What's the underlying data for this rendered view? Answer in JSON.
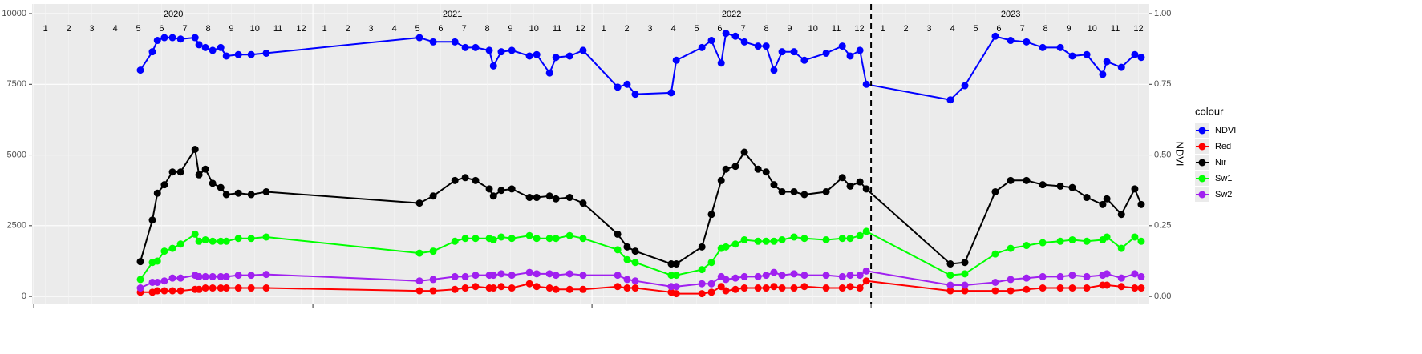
{
  "chart_data": {
    "type": "line",
    "legend_title": "colour",
    "y2label": "NDVI",
    "x": [
      2020.382,
      2020.425,
      2020.443,
      2020.468,
      2020.497,
      2020.526,
      2020.578,
      2020.592,
      2020.615,
      2020.641,
      2020.67,
      2020.69,
      2020.733,
      2020.779,
      2020.833,
      2021.382,
      2021.431,
      2021.509,
      2021.546,
      2021.583,
      2021.632,
      2021.647,
      2021.675,
      2021.713,
      2021.776,
      2021.802,
      2021.848,
      2021.871,
      2021.92,
      2021.968,
      2022.092,
      2022.126,
      2022.155,
      2022.284,
      2022.302,
      2022.394,
      2022.428,
      2022.463,
      2022.48,
      2022.514,
      2022.546,
      2022.595,
      2022.624,
      2022.652,
      2022.681,
      2022.724,
      2022.761,
      2022.839,
      2022.897,
      2022.925,
      2022.96,
      2022.983,
      2023.284,
      2023.336,
      2023.445,
      2023.5,
      2023.557,
      2023.615,
      2023.678,
      2023.721,
      2023.773,
      2023.83,
      2023.845,
      2023.897,
      2023.945,
      2023.968
    ],
    "series": [
      {
        "name": "NDVI",
        "color": "#0000ff",
        "axis": "y2",
        "values": [
          0.8,
          0.865,
          0.905,
          0.915,
          0.915,
          0.91,
          0.915,
          0.89,
          0.88,
          0.87,
          0.88,
          0.85,
          0.855,
          0.855,
          0.86,
          0.915,
          0.9,
          0.9,
          0.88,
          0.88,
          0.87,
          0.815,
          0.865,
          0.87,
          0.85,
          0.855,
          0.79,
          0.845,
          0.85,
          0.87,
          0.74,
          0.75,
          0.715,
          0.72,
          0.835,
          0.88,
          0.905,
          0.825,
          0.93,
          0.92,
          0.9,
          0.885,
          0.885,
          0.8,
          0.865,
          0.865,
          0.835,
          0.86,
          0.885,
          0.85,
          0.87,
          0.75,
          0.695,
          0.745,
          0.92,
          0.905,
          0.9,
          0.88,
          0.88,
          0.85,
          0.855,
          0.785,
          0.83,
          0.81,
          0.855,
          0.845
        ]
      },
      {
        "name": "Red",
        "color": "#ff0000",
        "values": [
          150,
          150,
          200,
          200,
          200,
          200,
          250,
          250,
          300,
          300,
          300,
          300,
          300,
          300,
          300,
          200,
          200,
          250,
          300,
          350,
          300,
          300,
          350,
          300,
          450,
          350,
          300,
          250,
          250,
          250,
          350,
          300,
          300,
          150,
          100,
          100,
          150,
          350,
          200,
          250,
          300,
          300,
          300,
          350,
          300,
          300,
          350,
          300,
          300,
          350,
          300,
          550,
          200,
          200,
          200,
          200,
          250,
          300,
          300,
          300,
          300,
          400,
          400,
          350,
          300,
          300
        ]
      },
      {
        "name": "Nir",
        "color": "#000000",
        "values": [
          1230,
          2700,
          3650,
          3950,
          4400,
          4400,
          5200,
          4300,
          4500,
          4000,
          3850,
          3600,
          3650,
          3600,
          3700,
          3300,
          3550,
          4100,
          4200,
          4100,
          3800,
          3550,
          3750,
          3800,
          3500,
          3500,
          3550,
          3450,
          3500,
          3300,
          2200,
          1750,
          1600,
          1150,
          1150,
          1750,
          2900,
          4100,
          4500,
          4600,
          5100,
          4500,
          4400,
          3950,
          3700,
          3700,
          3600,
          3700,
          4200,
          3900,
          4050,
          3800,
          1150,
          1200,
          3700,
          4100,
          4100,
          3950,
          3900,
          3850,
          3500,
          3250,
          3450,
          2900,
          3800,
          3250
        ]
      },
      {
        "name": "Sw1",
        "color": "#00ff00",
        "values": [
          600,
          1200,
          1250,
          1600,
          1700,
          1850,
          2200,
          1950,
          2000,
          1950,
          1950,
          1950,
          2050,
          2050,
          2100,
          1530,
          1600,
          1950,
          2050,
          2050,
          2050,
          2000,
          2100,
          2050,
          2150,
          2050,
          2050,
          2050,
          2150,
          2050,
          1650,
          1300,
          1200,
          750,
          750,
          950,
          1200,
          1700,
          1750,
          1850,
          2000,
          1950,
          1950,
          1950,
          2000,
          2100,
          2050,
          2000,
          2050,
          2050,
          2150,
          2300,
          750,
          800,
          1500,
          1700,
          1800,
          1900,
          1950,
          2000,
          1950,
          2000,
          2100,
          1700,
          2100,
          1950
        ]
      },
      {
        "name": "Sw2",
        "color": "#a020f0",
        "values": [
          300,
          500,
          500,
          550,
          650,
          650,
          750,
          700,
          700,
          700,
          700,
          700,
          750,
          750,
          780,
          550,
          600,
          700,
          700,
          750,
          750,
          750,
          800,
          750,
          850,
          800,
          800,
          750,
          800,
          750,
          750,
          600,
          550,
          350,
          350,
          450,
          450,
          700,
          600,
          650,
          700,
          700,
          750,
          850,
          750,
          800,
          750,
          750,
          700,
          750,
          750,
          900,
          400,
          400,
          500,
          600,
          650,
          700,
          700,
          750,
          700,
          750,
          800,
          650,
          800,
          700
        ]
      }
    ],
    "xlim": [
      2019.994,
      2023.994
    ],
    "xticks": [
      2020,
      2021,
      2022,
      2023
    ],
    "top_year_ticks": [
      {
        "value": 2020.5,
        "label": "2020"
      },
      {
        "value": 2021.5,
        "label": "2021"
      },
      {
        "value": 2022.5,
        "label": "2022"
      },
      {
        "value": 2023.5,
        "label": "2023"
      }
    ],
    "top_month_ticks": [
      {
        "value": 2020.042,
        "label": "1"
      },
      {
        "value": 2020.125,
        "label": "2"
      },
      {
        "value": 2020.208,
        "label": "3"
      },
      {
        "value": 2020.292,
        "label": "4"
      },
      {
        "value": 2020.375,
        "label": "5"
      },
      {
        "value": 2020.458,
        "label": "6"
      },
      {
        "value": 2020.542,
        "label": "7"
      },
      {
        "value": 2020.625,
        "label": "8"
      },
      {
        "value": 2020.708,
        "label": "9"
      },
      {
        "value": 2020.792,
        "label": "10"
      },
      {
        "value": 2020.875,
        "label": "11"
      },
      {
        "value": 2020.958,
        "label": "12"
      },
      {
        "value": 2021.042,
        "label": "1"
      },
      {
        "value": 2021.125,
        "label": "2"
      },
      {
        "value": 2021.208,
        "label": "3"
      },
      {
        "value": 2021.292,
        "label": "4"
      },
      {
        "value": 2021.375,
        "label": "5"
      },
      {
        "value": 2021.458,
        "label": "6"
      },
      {
        "value": 2021.542,
        "label": "7"
      },
      {
        "value": 2021.625,
        "label": "8"
      },
      {
        "value": 2021.708,
        "label": "9"
      },
      {
        "value": 2021.792,
        "label": "10"
      },
      {
        "value": 2021.875,
        "label": "11"
      },
      {
        "value": 2021.958,
        "label": "12"
      },
      {
        "value": 2022.042,
        "label": "1"
      },
      {
        "value": 2022.125,
        "label": "2"
      },
      {
        "value": 2022.208,
        "label": "3"
      },
      {
        "value": 2022.292,
        "label": "4"
      },
      {
        "value": 2022.375,
        "label": "5"
      },
      {
        "value": 2022.458,
        "label": "6"
      },
      {
        "value": 2022.542,
        "label": "7"
      },
      {
        "value": 2022.625,
        "label": "8"
      },
      {
        "value": 2022.708,
        "label": "9"
      },
      {
        "value": 2022.792,
        "label": "10"
      },
      {
        "value": 2022.875,
        "label": "11"
      },
      {
        "value": 2022.958,
        "label": "12"
      },
      {
        "value": 2023.042,
        "label": "1"
      },
      {
        "value": 2023.125,
        "label": "2"
      },
      {
        "value": 2023.208,
        "label": "3"
      },
      {
        "value": 2023.292,
        "label": "4"
      },
      {
        "value": 2023.375,
        "label": "5"
      },
      {
        "value": 2023.458,
        "label": "6"
      },
      {
        "value": 2023.542,
        "label": "7"
      },
      {
        "value": 2023.625,
        "label": "8"
      },
      {
        "value": 2023.708,
        "label": "9"
      },
      {
        "value": 2023.792,
        "label": "10"
      },
      {
        "value": 2023.875,
        "label": "11"
      },
      {
        "value": 2023.958,
        "label": "12"
      }
    ],
    "vline": 2023,
    "ylim": [
      -280,
      10340
    ],
    "yticks": [
      0,
      2500,
      5000,
      7500,
      10000
    ],
    "y2lim": [
      -0.028,
      1.034
    ],
    "y2ticks": [
      {
        "value": 0,
        "label": "0.00"
      },
      0.25,
      {
        "value": 0.5,
        "label": "0.50"
      },
      0.75,
      {
        "value": 1,
        "label": "1.00"
      }
    ],
    "grid": true
  }
}
